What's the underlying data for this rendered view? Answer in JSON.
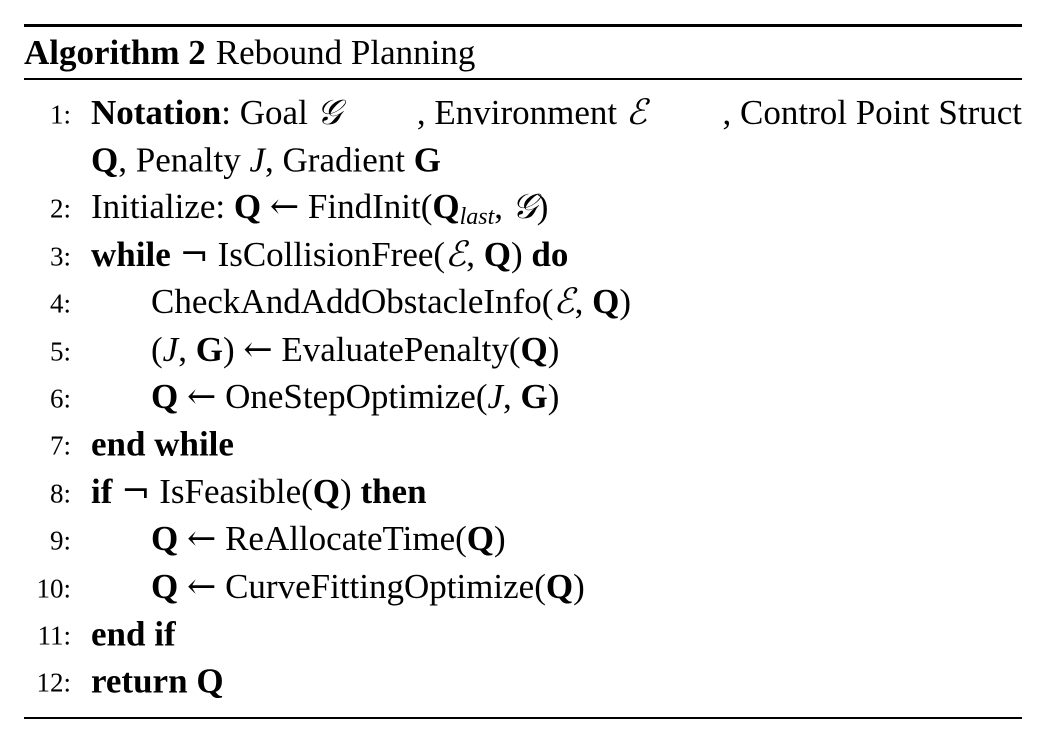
{
  "algorithm": {
    "label": "Algorithm 2",
    "title": "Rebound Planning"
  },
  "symbols": {
    "Q": "Q",
    "G_bold": "G",
    "J": "J",
    "goal": "𝒢",
    "env": "ℰ",
    "arrow": "←",
    "neg": "¬",
    "last": "last"
  },
  "lines": [
    {
      "num": "1:",
      "kw": "Notation",
      "w1": ": Goal",
      "w2": ", Environment",
      "w3": ", Control Point Struct",
      "cont_w1": ", Penalty",
      "cont_w2": ", Gradient"
    },
    {
      "num": "2:",
      "t1": "Initialize:",
      "fn": "FindInit(",
      "sep": ",",
      "close": ")"
    },
    {
      "num": "3:",
      "kw": "while",
      "fn": "IsCollisionFree(",
      "sep": ",",
      "close": ")",
      "kw2": "do"
    },
    {
      "num": "4:",
      "fn": "CheckAndAddObstacleInfo(",
      "sep": ",",
      "close": ")"
    },
    {
      "num": "5:",
      "open": "(",
      "sep": ",",
      "close": ")",
      "fn": "EvaluatePenalty(",
      "close2": ")"
    },
    {
      "num": "6:",
      "fn": "OneStepOptimize(",
      "sep": ",",
      "close": ")"
    },
    {
      "num": "7:",
      "kw": "end while"
    },
    {
      "num": "8:",
      "kw": "if",
      "fn": "IsFeasible(",
      "close": ")",
      "kw2": "then"
    },
    {
      "num": "9:",
      "fn": "ReAllocateTime(",
      "close": ")"
    },
    {
      "num": "10:",
      "fn": "CurveFittingOptimize(",
      "close": ")"
    },
    {
      "num": "11:",
      "kw": "end if"
    },
    {
      "num": "12:",
      "kw": "return"
    }
  ]
}
